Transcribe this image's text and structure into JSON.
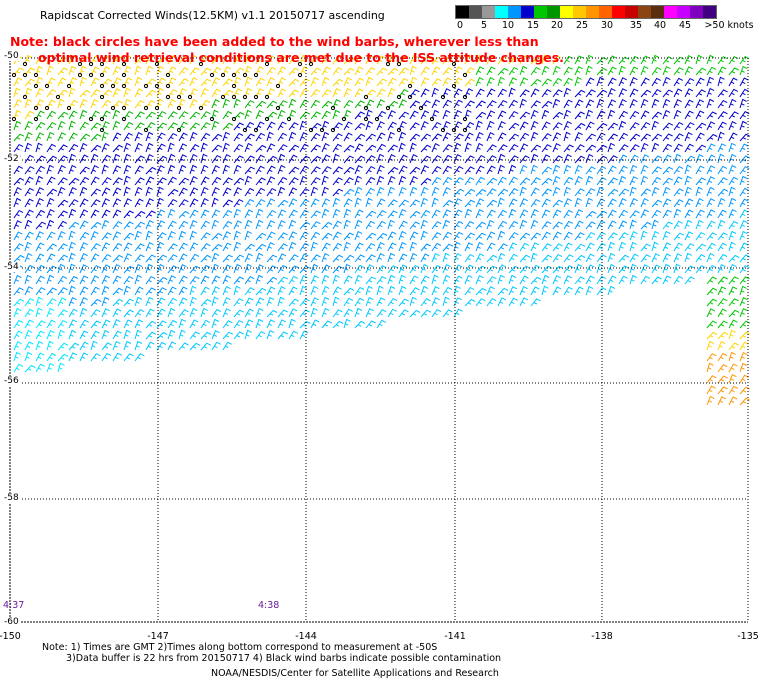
{
  "title": "Rapidscat Corrected Winds(12.5KM) v1.1 20150717 ascending",
  "note": {
    "line1": "Note: black circles have been added to the wind barbs, wherever less than",
    "line2": "optimal wind retrieval conditions are met due to the ISS attitude changes."
  },
  "scale": {
    "labels": [
      "0",
      "5",
      "10",
      "15",
      "20",
      "25",
      "30",
      "35",
      "40",
      "45",
      ">50 knots"
    ],
    "colors": [
      "#000000",
      "#555555",
      "#999999",
      "#00ffff",
      "#0096ff",
      "#0000cd",
      "#00c800",
      "#009600",
      "#ffff00",
      "#ffc800",
      "#ff9600",
      "#ff6400",
      "#ff0000",
      "#c80000",
      "#8b4513",
      "#5a2d0c",
      "#ff00ff",
      "#c800ff",
      "#8000c0",
      "#400080"
    ]
  },
  "latitudes": [
    "-50",
    "-52",
    "-54",
    "-56",
    "-58",
    "-60"
  ],
  "longitudes": [
    "-150",
    "-147",
    "-144",
    "-141",
    "-138",
    "-135"
  ],
  "times": [
    "4:37",
    "4:38"
  ],
  "footnotes": {
    "line1": "Note: 1) Times are GMT 2)Times along bottom correspond to measurement at -50S",
    "line2": "3)Data buffer is 22 hrs from 20150717 4) Black wind barbs indicate possible contamination",
    "line3": "NOAA/NESDIS/Center for Satellite Applications and Research"
  }
}
